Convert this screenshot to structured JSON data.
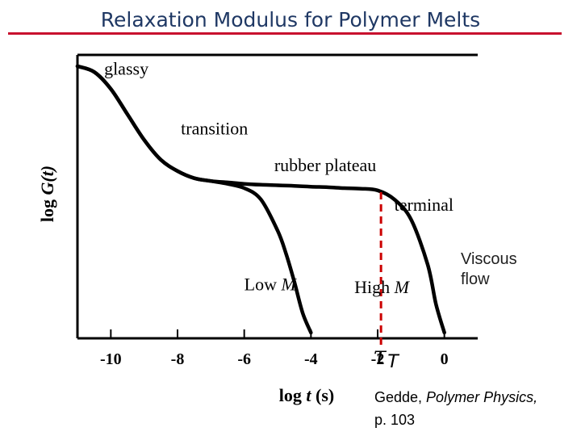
{
  "header": {
    "title": "Relaxation Modulus for Polymer Melts"
  },
  "chart_data": {
    "type": "line",
    "title": "",
    "xlabel_prefix": "log ",
    "xlabel_var": "t",
    "xlabel_suffix": " (s)",
    "ylabel_prefix": "log ",
    "ylabel_var": "G(t)",
    "xlim": [
      -11,
      1
    ],
    "ylim": [
      0,
      10
    ],
    "x_ticks": [
      -10,
      -8,
      -6,
      -4,
      -2,
      0
    ],
    "x_tick_labels": [
      "-10",
      "-8",
      "-6",
      "-4",
      "-2",
      "0"
    ],
    "grid": false,
    "series": [
      {
        "name": "Low M",
        "x": [
          -11,
          -10.5,
          -10,
          -9.5,
          -9,
          -8.5,
          -8,
          -7.5,
          -7,
          -6.5,
          -6,
          -5.5,
          -5,
          -4.75,
          -4.5,
          -4.25,
          -4
        ],
        "y": [
          9.6,
          9.4,
          8.8,
          7.9,
          7.0,
          6.3,
          5.9,
          5.65,
          5.55,
          5.45,
          5.3,
          4.9,
          3.8,
          3.0,
          2.0,
          0.9,
          0.2
        ]
      },
      {
        "name": "High M",
        "x": [
          -11,
          -10.5,
          -10,
          -9.5,
          -9,
          -8.5,
          -8,
          -7.5,
          -7,
          -6.5,
          -6,
          -5.5,
          -5,
          -4.5,
          -4,
          -3.5,
          -3,
          -2.5,
          -2,
          -1.5,
          -1,
          -0.5,
          -0.25,
          0
        ],
        "y": [
          9.6,
          9.4,
          8.8,
          7.9,
          7.0,
          6.3,
          5.9,
          5.65,
          5.55,
          5.5,
          5.45,
          5.42,
          5.4,
          5.38,
          5.35,
          5.33,
          5.3,
          5.28,
          5.22,
          4.9,
          4.2,
          2.6,
          1.2,
          0.2
        ]
      }
    ],
    "annotations": [
      {
        "text": "glassy",
        "x": -10.2,
        "y": 9.3
      },
      {
        "text": "transition",
        "x": -7.9,
        "y": 7.2
      },
      {
        "text": "rubber plateau",
        "x": -5.1,
        "y": 5.9
      },
      {
        "text": "terminal",
        "x": -1.5,
        "y": 4.5
      },
      {
        "text_plain": "Low ",
        "text_italic": "M",
        "x": -6.0,
        "y": 1.7
      },
      {
        "text_plain": "High ",
        "text_italic": "M",
        "x": -2.7,
        "y": 1.6
      }
    ],
    "marker": {
      "x": -1.9,
      "color": "#cc0000",
      "symbol": "τ",
      "subscript": "T"
    },
    "overlay_label": [
      "Viscous",
      "flow"
    ]
  },
  "citation": {
    "author": "Gedde, ",
    "book": "Polymer Physics,",
    "page": "p. 103"
  }
}
